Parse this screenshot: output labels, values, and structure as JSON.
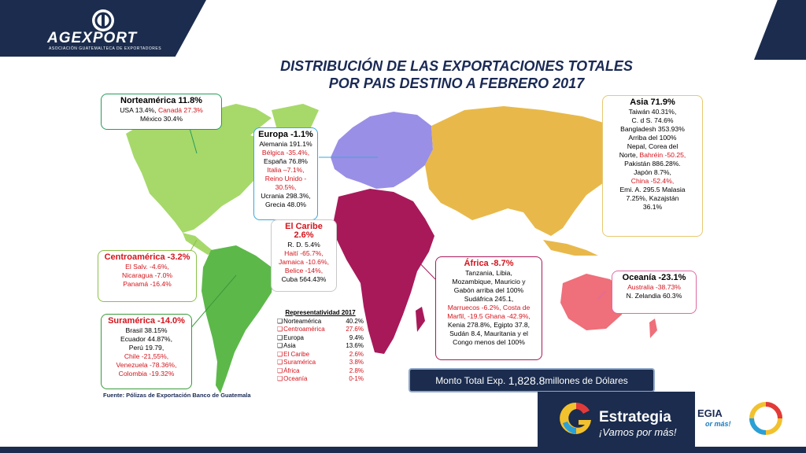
{
  "header": {
    "logo_name": "AGEXPORT",
    "logo_sub": "ASOCIACIÓN GUATEMALTECA DE EXPORTADORES",
    "title_line1": "DISTRIBUCIÓN  DE LAS EXPORTACIONES TOTALES",
    "title_line2": "POR  PAIS DESTINO A FEBRERO 2017"
  },
  "regions": {
    "norteamerica": {
      "title": "Norteamérica  11.8%",
      "line1a": "USA 13.4%, ",
      "line1b": "Canadá  27.3%",
      "line2": "México 30.4%"
    },
    "europa": {
      "title": "Europa -1.1%",
      "l1": "Alemania 191.1%",
      "l2": "Bélgica -35.4%,",
      "l3": "España 76.8%",
      "l4": "Italia –7.1%,",
      "l5": "Reino Unido -",
      "l6": "30.5%,",
      "l7": "Ucrania 298.3%,",
      "l8": "Grecia 48.0%"
    },
    "caribe": {
      "title": "El Caribe  2.6%",
      "l1": "R. D. 5.4%",
      "l2": "Haití -65.7%,",
      "l3": "Jamaica -10.6%,",
      "l4": "Belice -14%,",
      "l5": "Cuba 564.43%"
    },
    "centroamerica": {
      "title": "Centroamérica   -3.2%",
      "l1": "El Salv. -4.6%,",
      "l2": "Nicaragua -7.0%",
      "l3": "Panamá -16.4%"
    },
    "suramerica": {
      "title": "Suramérica -14.0%",
      "l1": "Brasil 38.15%",
      "l2": "Ecuador 44.87%,",
      "l3": "Perú 19.79,",
      "l4": "Chile -21,55%,",
      "l5": "Venezuela -78.36%,",
      "l6": "Colombia -19.32%"
    },
    "asia": {
      "title": "Asia  71.9%",
      "l1": "Taiwán 40.31%,",
      "l2": "C. d S. 74.6%",
      "l3": "Bangladesh 353.93%",
      "l4": "Arriba del 100%",
      "l5": "Nepal, Corea del",
      "l6a": "Norte, ",
      "l6b": "Bahréin -50.25,",
      "l7": "Pakistán 886.28%.",
      "l8": "Japón  8.7%,",
      "l9": "China -52.4%,",
      "l10": "Emi. A. 295.5 Malasia",
      "l11": "7.25%, Kazajstán",
      "l12": "36.1%"
    },
    "africa": {
      "title": "África -8.7%",
      "l1": "Tanzania, Libia,",
      "l2": "Mozambique, Mauricio y",
      "l3": "Gabón arriba del 100%",
      "l4": "Sudáfrica 245.1,",
      "l5": "Marruecos -6.2%, Costa de",
      "l6": "Marfil, -19.5  Ghana -42.9%,",
      "l7": "Kenia 278.8%, Egipto 37.8,",
      "l8": "Sudán 8.4, Mauritania y el",
      "l9": "Congo menos del 100%"
    },
    "oceania": {
      "title": "Oceanía -23.1%",
      "l1": "Australia -38.73%",
      "l2": "N. Zelandia 60.3%"
    }
  },
  "representatividad": {
    "title": "Representatividad 2017",
    "rows": [
      {
        "name": "Norteamérica",
        "value": "40.2%"
      },
      {
        "name": "Centroamérica",
        "value": "27.6%"
      },
      {
        "name": "Europa",
        "value": "9.4%"
      },
      {
        "name": "Asia",
        "value": "13.6%"
      },
      {
        "name": "El Caribe",
        "value": "2.6%"
      },
      {
        "name": "Suramérica",
        "value": "3.8%"
      },
      {
        "name": "África",
        "value": "2.8%"
      },
      {
        "name": "Oceanía",
        "value": "0-1%"
      }
    ]
  },
  "footer": {
    "monto_a": "Monto Total Exp. ",
    "monto_b": "1,828.8",
    "monto_c": " millones de Dólares",
    "fuente": "Fuente: Pólizas de Exportación Banco de Guatemala",
    "estrategia": "Estrategia",
    "vamos": "¡Vamos por más!",
    "estrategia_partial": "EGIA",
    "vamos_partial": "or más!"
  },
  "colors": {
    "navy": "#1b2c4e",
    "north_america": "#a6d96a",
    "south_america": "#5db84a",
    "europe": "#9a8fe6",
    "africa": "#a8195a",
    "asia": "#e8b94a",
    "oceania": "#ef6f7a",
    "red_text": "#d4141c"
  }
}
